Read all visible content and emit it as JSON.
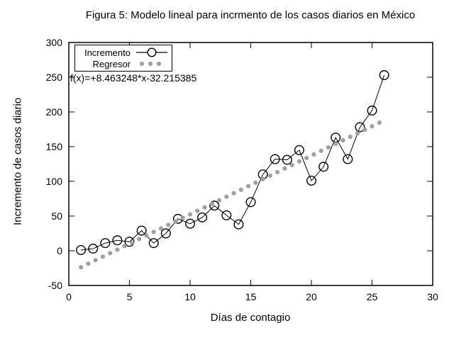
{
  "annotation": "f(x)=+8.463248*x-32.215385",
  "legend": {
    "items": [
      {
        "label": "Incremento",
        "sample": "line-open-circle"
      },
      {
        "label": "Regresor",
        "sample": "gray-dots"
      }
    ]
  },
  "colors": {
    "foreground": "#000000",
    "background": "#ffffff",
    "regressor": "#a0a0a0"
  },
  "chart_data": {
    "type": "line",
    "title": "Figura 5: Modelo lineal para incrmento de los casos diarios en México",
    "xlabel": "Días de contagio",
    "ylabel": "Incremento de casos diario",
    "xlim": [
      0,
      30
    ],
    "ylim": [
      -50,
      300
    ],
    "xticks": [
      0,
      5,
      10,
      15,
      20,
      25,
      30
    ],
    "yticks": [
      -50,
      0,
      50,
      100,
      150,
      200,
      250,
      300
    ],
    "grid": false,
    "legend_position": "top-left-inside",
    "series": [
      {
        "name": "Incremento",
        "type": "linespoints",
        "marker": "open-circle",
        "color": "#000000",
        "x": [
          1,
          2,
          3,
          4,
          5,
          6,
          7,
          8,
          9,
          10,
          11,
          12,
          13,
          14,
          15,
          16,
          17,
          18,
          19,
          20,
          21,
          22,
          23,
          24,
          25,
          26
        ],
        "y": [
          1,
          3,
          11,
          15,
          13,
          29,
          11,
          25,
          46,
          39,
          48,
          65,
          51,
          38,
          70,
          110,
          132,
          131,
          145,
          101,
          121,
          163,
          132,
          178,
          202,
          253
        ]
      },
      {
        "name": "Regresor",
        "type": "points",
        "marker": "filled-dot",
        "color": "#a0a0a0",
        "fit": {
          "slope": 8.463248,
          "intercept": -32.215385,
          "x_start": 1,
          "x_end": 25.6,
          "step": 0.6,
          "n_dots": 42
        }
      }
    ]
  }
}
